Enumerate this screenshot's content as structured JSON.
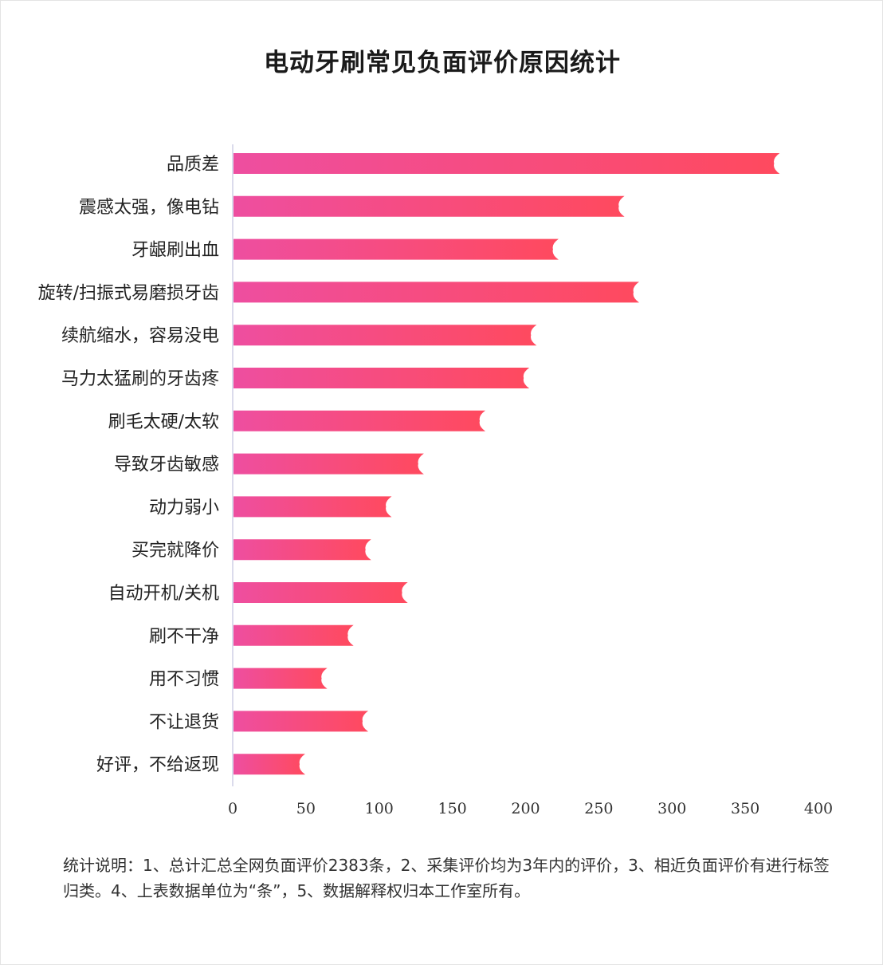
{
  "chart_data": {
    "type": "bar",
    "orientation": "horizontal",
    "title": "电动牙刷常见负面评价原因统计",
    "categories": [
      "品质差",
      "震感太强，像电钻",
      "牙龈刷出血",
      "旋转/扫振式易磨损牙齿",
      "续航缩水，容易没电",
      "马力太猛刷的牙齿疼",
      "刷毛太硬/太软",
      "导致牙齿敏感",
      "动力弱小",
      "买完就降价",
      "自动开机/关机",
      "刷不干净",
      "用不习惯",
      "不让退货",
      "好评，不给返现"
    ],
    "values": [
      373,
      267,
      222,
      277,
      207,
      202,
      172,
      130,
      108,
      94,
      119,
      82,
      64,
      92,
      49
    ],
    "xlim": [
      0,
      400
    ],
    "xticks": [
      0,
      50,
      100,
      150,
      200,
      250,
      300,
      350,
      400
    ],
    "grid": false,
    "colors": {
      "bar_start": "#ee4ea0",
      "bar_end": "#ff4a5e",
      "axis": "#cfcfe6"
    }
  },
  "note": "统计说明：1、总计汇总全网负面评价2383条，2、采集评价均为3年内的评价，3、相近负面评价有进行标签归类。4、上表数据单位为“条”，5、数据解释权归本工作室所有。"
}
